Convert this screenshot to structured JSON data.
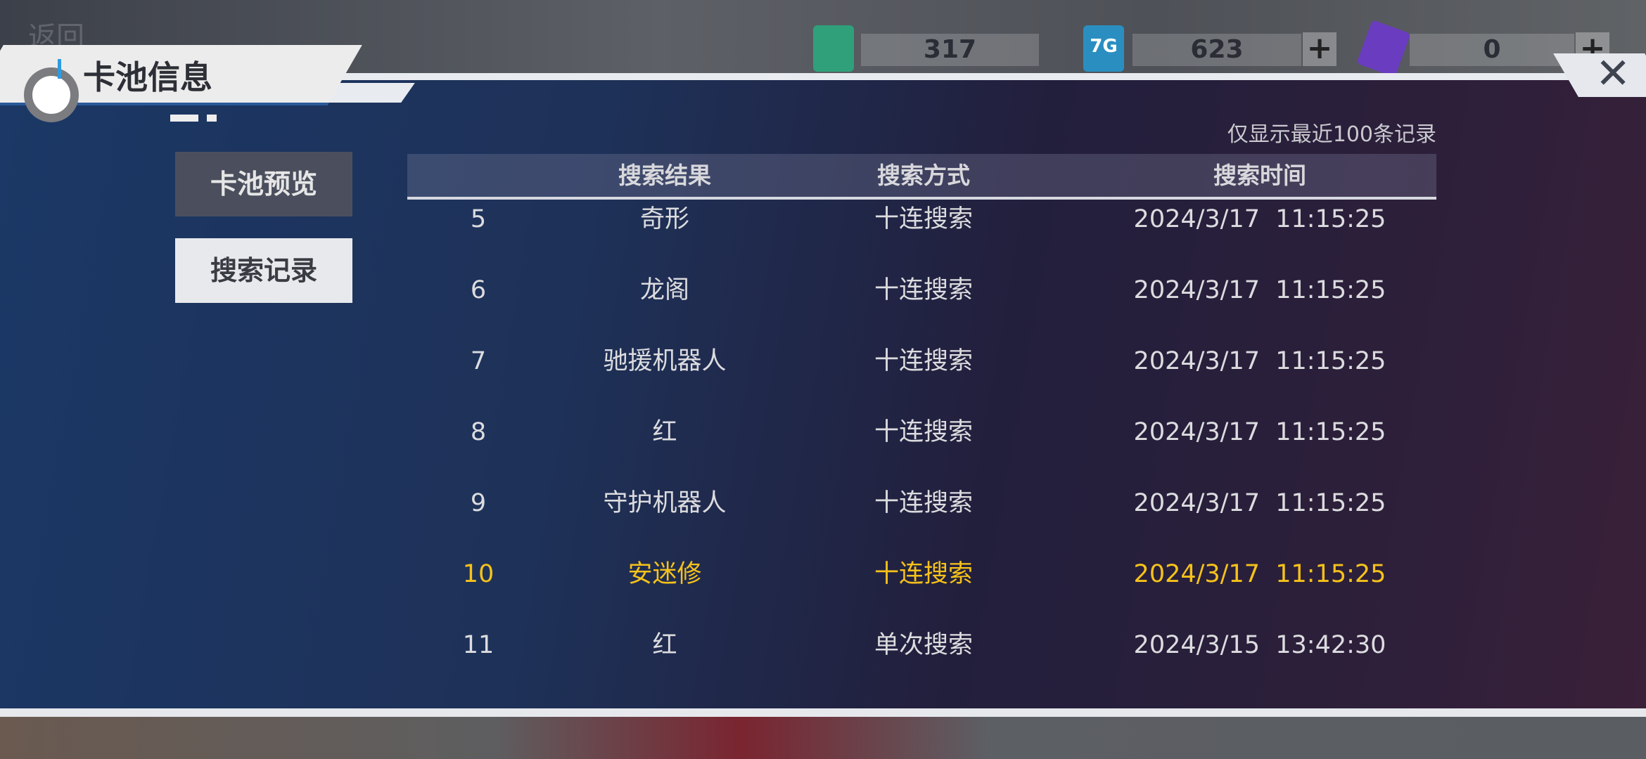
{
  "header": {
    "back_label": "返回",
    "title": "卡池信息"
  },
  "currencies": [
    {
      "icon": "green-ticket-icon",
      "value": "317",
      "color": "#2fa07a"
    },
    {
      "icon": "7g-chip-icon",
      "value": "623",
      "color": "#2a8fc0"
    },
    {
      "icon": "purple-crystal-icon",
      "value": "0",
      "color": "#6a3cc0"
    }
  ],
  "tabs": [
    {
      "label": "卡池预览",
      "active": false
    },
    {
      "label": "搜索记录",
      "active": true
    }
  ],
  "note": "仅显示最近100条记录",
  "table": {
    "columns": [
      "",
      "搜索结果",
      "搜索方式",
      "搜索时间"
    ],
    "rows": [
      {
        "no": "5",
        "result": "奇形",
        "method": "十连搜索",
        "time": "2024/3/17  11:15:25",
        "highlight": false
      },
      {
        "no": "6",
        "result": "龙阁",
        "method": "十连搜索",
        "time": "2024/3/17  11:15:25",
        "highlight": false
      },
      {
        "no": "7",
        "result": "驰援机器人",
        "method": "十连搜索",
        "time": "2024/3/17  11:15:25",
        "highlight": false
      },
      {
        "no": "8",
        "result": "红",
        "method": "十连搜索",
        "time": "2024/3/17  11:15:25",
        "highlight": false
      },
      {
        "no": "9",
        "result": "守护机器人",
        "method": "十连搜索",
        "time": "2024/3/17  11:15:25",
        "highlight": false
      },
      {
        "no": "10",
        "result": "安迷修",
        "method": "十连搜索",
        "time": "2024/3/17  11:15:25",
        "highlight": true
      },
      {
        "no": "11",
        "result": "红",
        "method": "单次搜索",
        "time": "2024/3/15  13:42:30",
        "highlight": false
      }
    ]
  },
  "colors": {
    "highlight": "#f6c21a",
    "text": "#dcdcdf"
  }
}
